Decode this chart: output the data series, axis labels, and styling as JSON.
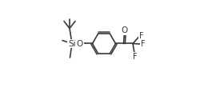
{
  "bg_color": "#ffffff",
  "line_color": "#3a3a3a",
  "line_width": 1.2,
  "font_size": 7.0,
  "figsize": [
    2.51,
    1.1
  ],
  "dpi": 100,
  "xlim": [
    0.0,
    2.51
  ],
  "ylim": [
    0.0,
    1.1
  ]
}
